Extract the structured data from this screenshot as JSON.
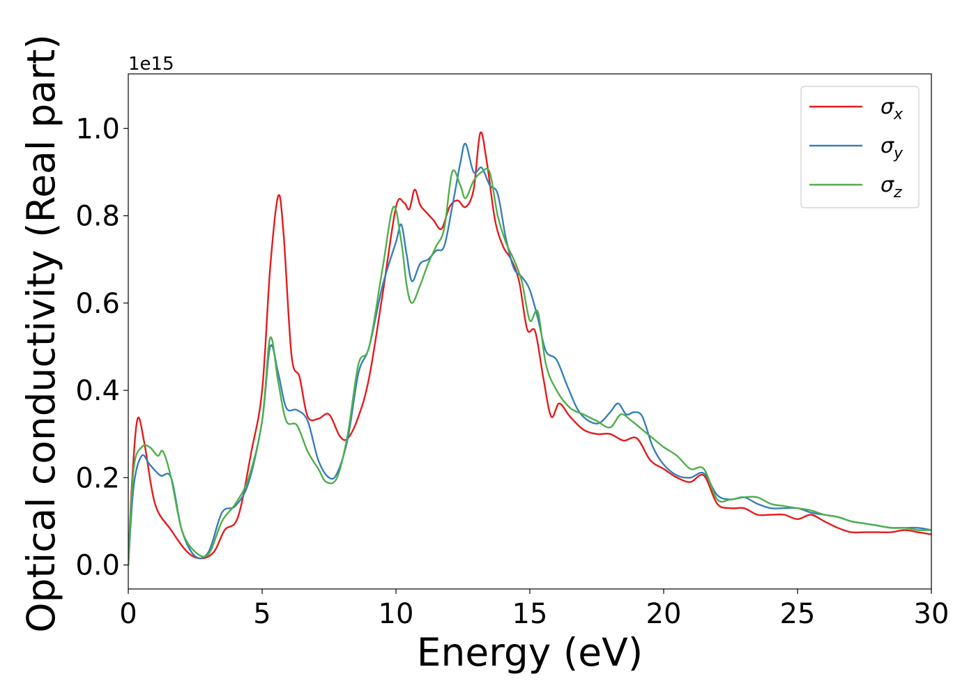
{
  "chart_data": {
    "type": "line",
    "xlabel": "Energy (eV)",
    "ylabel": "Optical conductivity (Real part)",
    "y_offset_label": "1e15",
    "xlim": [
      0,
      30
    ],
    "ylim": [
      -0.055,
      1.125
    ],
    "xticks": [
      0,
      5,
      10,
      15,
      20,
      25,
      30
    ],
    "xtick_labels": [
      "0",
      "5",
      "10",
      "15",
      "20",
      "25",
      "30"
    ],
    "yticks": [
      0.0,
      0.2,
      0.4,
      0.6,
      0.8,
      1.0
    ],
    "ytick_labels": [
      "0.0",
      "0.2",
      "0.4",
      "0.6",
      "0.8",
      "1.0"
    ],
    "grid": false,
    "legend_position": "top-right",
    "series": [
      {
        "name": "σx",
        "sub": "x",
        "color": "#e41a1c",
        "x": [
          0,
          0.15,
          0.35,
          0.6,
          1.0,
          1.6,
          2.2,
          2.7,
          3.2,
          3.6,
          4.1,
          4.6,
          5.0,
          5.3,
          5.6,
          5.8,
          6.1,
          6.4,
          6.7,
          7.1,
          7.5,
          7.9,
          8.2,
          8.6,
          9.0,
          9.5,
          10.0,
          10.3,
          10.5,
          10.7,
          10.9,
          11.1,
          11.4,
          11.7,
          12.0,
          12.3,
          12.6,
          12.9,
          13.15,
          13.4,
          13.7,
          14.0,
          14.3,
          14.6,
          14.9,
          15.2,
          15.5,
          15.8,
          16.1,
          16.5,
          17.0,
          17.5,
          18.0,
          18.5,
          19.0,
          19.5,
          20.0,
          20.5,
          21.0,
          21.5,
          22.0,
          22.5,
          23.0,
          23.5,
          24.0,
          24.5,
          25.0,
          25.5,
          26.0,
          26.5,
          27.0,
          27.5,
          28.0,
          28.5,
          29.0,
          29.5,
          30.0
        ],
        "values": [
          0.0,
          0.2,
          0.335,
          0.28,
          0.14,
          0.08,
          0.03,
          0.015,
          0.03,
          0.08,
          0.11,
          0.26,
          0.4,
          0.68,
          0.845,
          0.76,
          0.48,
          0.43,
          0.34,
          0.335,
          0.345,
          0.295,
          0.29,
          0.34,
          0.43,
          0.62,
          0.82,
          0.83,
          0.815,
          0.86,
          0.825,
          0.81,
          0.79,
          0.77,
          0.82,
          0.835,
          0.82,
          0.86,
          0.99,
          0.92,
          0.79,
          0.73,
          0.7,
          0.65,
          0.54,
          0.535,
          0.43,
          0.34,
          0.37,
          0.34,
          0.31,
          0.3,
          0.3,
          0.285,
          0.29,
          0.24,
          0.22,
          0.2,
          0.19,
          0.205,
          0.14,
          0.13,
          0.13,
          0.115,
          0.115,
          0.115,
          0.105,
          0.115,
          0.1,
          0.085,
          0.075,
          0.075,
          0.075,
          0.075,
          0.08,
          0.075,
          0.07
        ]
      },
      {
        "name": "σy",
        "sub": "y",
        "color": "#377eb8",
        "x": [
          0,
          0.2,
          0.5,
          0.8,
          1.2,
          1.6,
          2.0,
          2.5,
          3.0,
          3.5,
          4.0,
          4.5,
          5.0,
          5.3,
          5.6,
          5.9,
          6.3,
          6.7,
          7.1,
          7.5,
          7.8,
          8.2,
          8.6,
          9.0,
          9.5,
          10.0,
          10.2,
          10.4,
          10.6,
          10.9,
          11.2,
          11.5,
          11.8,
          12.1,
          12.4,
          12.6,
          12.9,
          13.2,
          13.5,
          13.8,
          14.1,
          14.4,
          14.7,
          15.0,
          15.3,
          15.6,
          16.0,
          16.4,
          16.8,
          17.2,
          17.6,
          18.0,
          18.3,
          18.6,
          18.9,
          19.2,
          19.6,
          20.0,
          20.5,
          21.0,
          21.5,
          22.0,
          22.5,
          23.0,
          23.5,
          24.0,
          24.5,
          25.0,
          25.5,
          26.0,
          26.5,
          27.0,
          27.5,
          28.0,
          28.5,
          29.0,
          29.5,
          30.0
        ],
        "values": [
          0.0,
          0.18,
          0.25,
          0.23,
          0.205,
          0.2,
          0.08,
          0.02,
          0.03,
          0.12,
          0.135,
          0.19,
          0.33,
          0.5,
          0.44,
          0.36,
          0.355,
          0.33,
          0.24,
          0.2,
          0.21,
          0.29,
          0.44,
          0.5,
          0.64,
          0.74,
          0.78,
          0.71,
          0.65,
          0.69,
          0.7,
          0.72,
          0.73,
          0.82,
          0.92,
          0.965,
          0.9,
          0.91,
          0.87,
          0.85,
          0.75,
          0.68,
          0.66,
          0.63,
          0.565,
          0.49,
          0.47,
          0.41,
          0.355,
          0.33,
          0.325,
          0.35,
          0.37,
          0.345,
          0.35,
          0.34,
          0.27,
          0.23,
          0.205,
          0.2,
          0.21,
          0.16,
          0.15,
          0.155,
          0.14,
          0.13,
          0.13,
          0.13,
          0.12,
          0.115,
          0.11,
          0.1,
          0.095,
          0.09,
          0.085,
          0.085,
          0.085,
          0.08
        ]
      },
      {
        "name": "σz",
        "sub": "z",
        "color": "#4daf4a",
        "x": [
          0,
          0.2,
          0.5,
          0.8,
          1.1,
          1.3,
          1.6,
          2.0,
          2.5,
          3.0,
          3.5,
          4.0,
          4.5,
          5.0,
          5.3,
          5.6,
          5.9,
          6.3,
          6.7,
          7.1,
          7.4,
          7.8,
          8.2,
          8.6,
          9.0,
          9.5,
          9.9,
          10.2,
          10.4,
          10.6,
          10.9,
          11.2,
          11.5,
          11.8,
          12.1,
          12.4,
          12.6,
          12.9,
          13.2,
          13.5,
          13.8,
          14.1,
          14.4,
          14.7,
          15.0,
          15.3,
          15.6,
          16.0,
          16.5,
          17.0,
          17.5,
          18.0,
          18.4,
          18.8,
          19.2,
          19.6,
          20.0,
          20.5,
          21.0,
          21.5,
          22.0,
          22.5,
          23.0,
          23.5,
          24.0,
          24.5,
          25.0,
          25.5,
          26.0,
          26.5,
          27.0,
          27.5,
          28.0,
          28.5,
          29.0,
          29.5,
          30.0
        ],
        "values": [
          0.0,
          0.22,
          0.27,
          0.27,
          0.25,
          0.26,
          0.2,
          0.08,
          0.03,
          0.025,
          0.1,
          0.14,
          0.2,
          0.33,
          0.52,
          0.42,
          0.33,
          0.32,
          0.26,
          0.22,
          0.19,
          0.2,
          0.3,
          0.46,
          0.5,
          0.68,
          0.82,
          0.74,
          0.64,
          0.6,
          0.64,
          0.69,
          0.73,
          0.77,
          0.9,
          0.87,
          0.84,
          0.88,
          0.9,
          0.9,
          0.8,
          0.74,
          0.7,
          0.65,
          0.56,
          0.58,
          0.46,
          0.4,
          0.36,
          0.345,
          0.33,
          0.315,
          0.345,
          0.33,
          0.31,
          0.29,
          0.27,
          0.25,
          0.22,
          0.22,
          0.15,
          0.15,
          0.155,
          0.155,
          0.14,
          0.135,
          0.13,
          0.125,
          0.115,
          0.11,
          0.1,
          0.095,
          0.09,
          0.085,
          0.085,
          0.08,
          0.08
        ]
      }
    ]
  }
}
